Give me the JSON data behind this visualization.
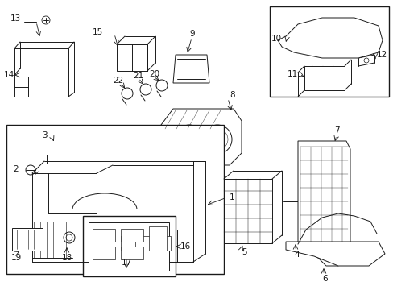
{
  "background_color": "#ffffff",
  "line_color": "#1a1a1a",
  "fig_width": 4.89,
  "fig_height": 3.6,
  "dpi": 100,
  "parts": {
    "label_fontsize": 7.5,
    "arrow_lw": 0.6
  }
}
